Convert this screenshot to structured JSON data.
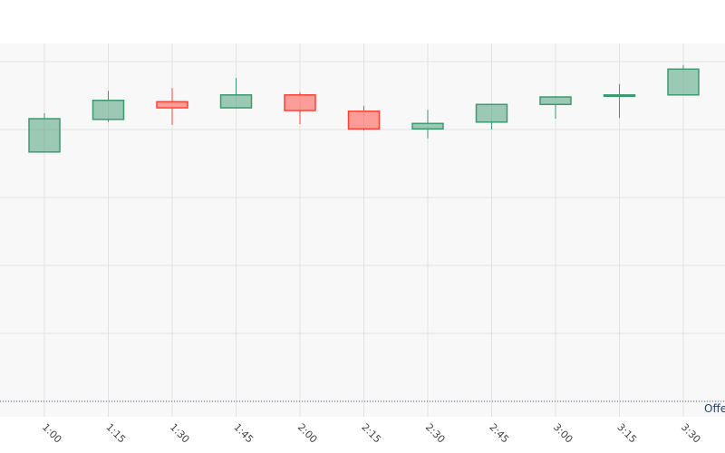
{
  "chart_data": {
    "type": "candlestick",
    "categories": [
      "1:00",
      "1:15",
      "1:30",
      "1:45",
      "2:00",
      "2:15",
      "2:30",
      "2:45",
      "3:00",
      "3:15",
      "3:30"
    ],
    "open": [
      3.67,
      4.15,
      4.41,
      4.32,
      4.51,
      4.27,
      4.01,
      4.11,
      4.37,
      4.49,
      4.51
    ],
    "high": [
      4.24,
      4.57,
      4.61,
      4.76,
      4.55,
      4.35,
      4.29,
      4.37,
      4.49,
      4.67,
      4.95
    ],
    "low": [
      3.67,
      4.11,
      4.07,
      4.32,
      4.08,
      3.99,
      3.87,
      4.0,
      4.16,
      4.17,
      4.51
    ],
    "close": [
      4.16,
      4.43,
      4.32,
      4.51,
      4.28,
      4.01,
      4.09,
      4.37,
      4.48,
      4.51,
      4.89
    ],
    "increasing_color": "#3d9970",
    "decreasing_color": "#ff4136",
    "ylim": [
      -0.227,
      5.267
    ],
    "yticks": [
      0,
      1,
      2,
      3,
      4,
      5
    ],
    "grid": true,
    "hline": {
      "y": 0,
      "text": "Offe"
    }
  }
}
